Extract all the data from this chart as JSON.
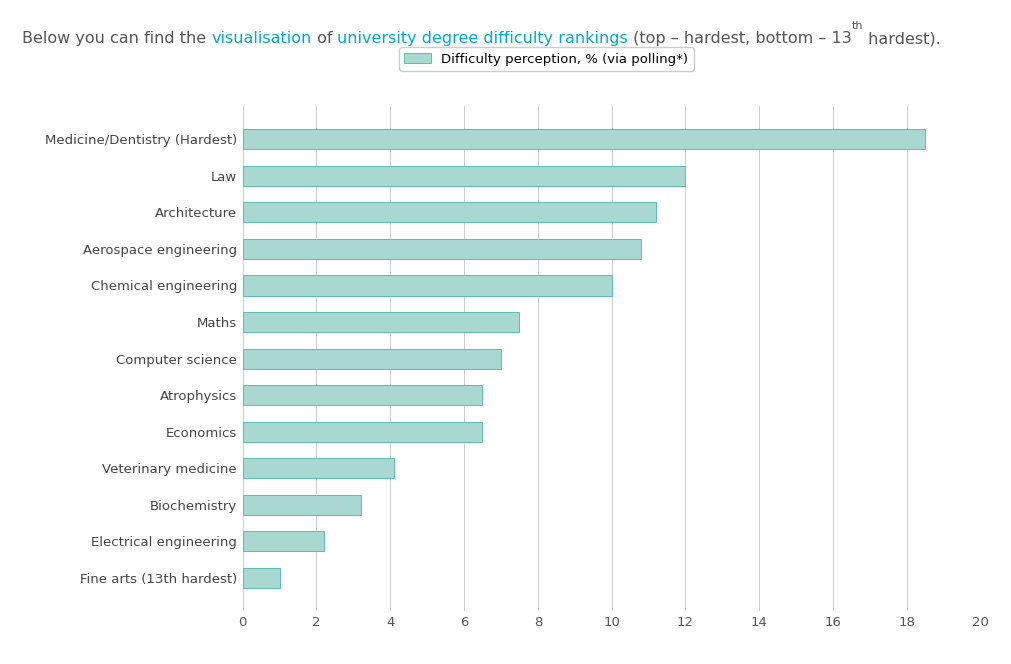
{
  "categories": [
    "Medicine/Dentistry (Hardest)",
    "Law",
    "Architecture",
    "Aerospace engineering",
    "Chemical engineering",
    "Maths",
    "Computer science",
    "Atrophysics",
    "Economics",
    "Veterinary medicine",
    "Biochemistry",
    "Electrical engineering",
    "Fine arts (13th hardest)"
  ],
  "values": [
    18.5,
    12.0,
    11.2,
    10.8,
    10.0,
    7.5,
    7.0,
    6.5,
    6.5,
    4.1,
    3.2,
    2.2,
    1.0
  ],
  "bar_color": "#a8d8d0",
  "bar_edgecolor": "#5bbdb5",
  "background_color": "#ffffff",
  "grid_color": "#cccccc",
  "legend_label": "Difficulty perception, % (via polling*)",
  "xlim": [
    0,
    20
  ],
  "xticks": [
    0,
    2,
    4,
    6,
    8,
    10,
    12,
    14,
    16,
    18,
    20
  ],
  "title_normal_color": "#555555",
  "title_highlight_color": "#00aacc",
  "title_fontsize": 11.5,
  "ytick_fontsize": 9.5,
  "xtick_fontsize": 9.5,
  "legend_fontsize": 9.5,
  "bar_height": 0.55
}
